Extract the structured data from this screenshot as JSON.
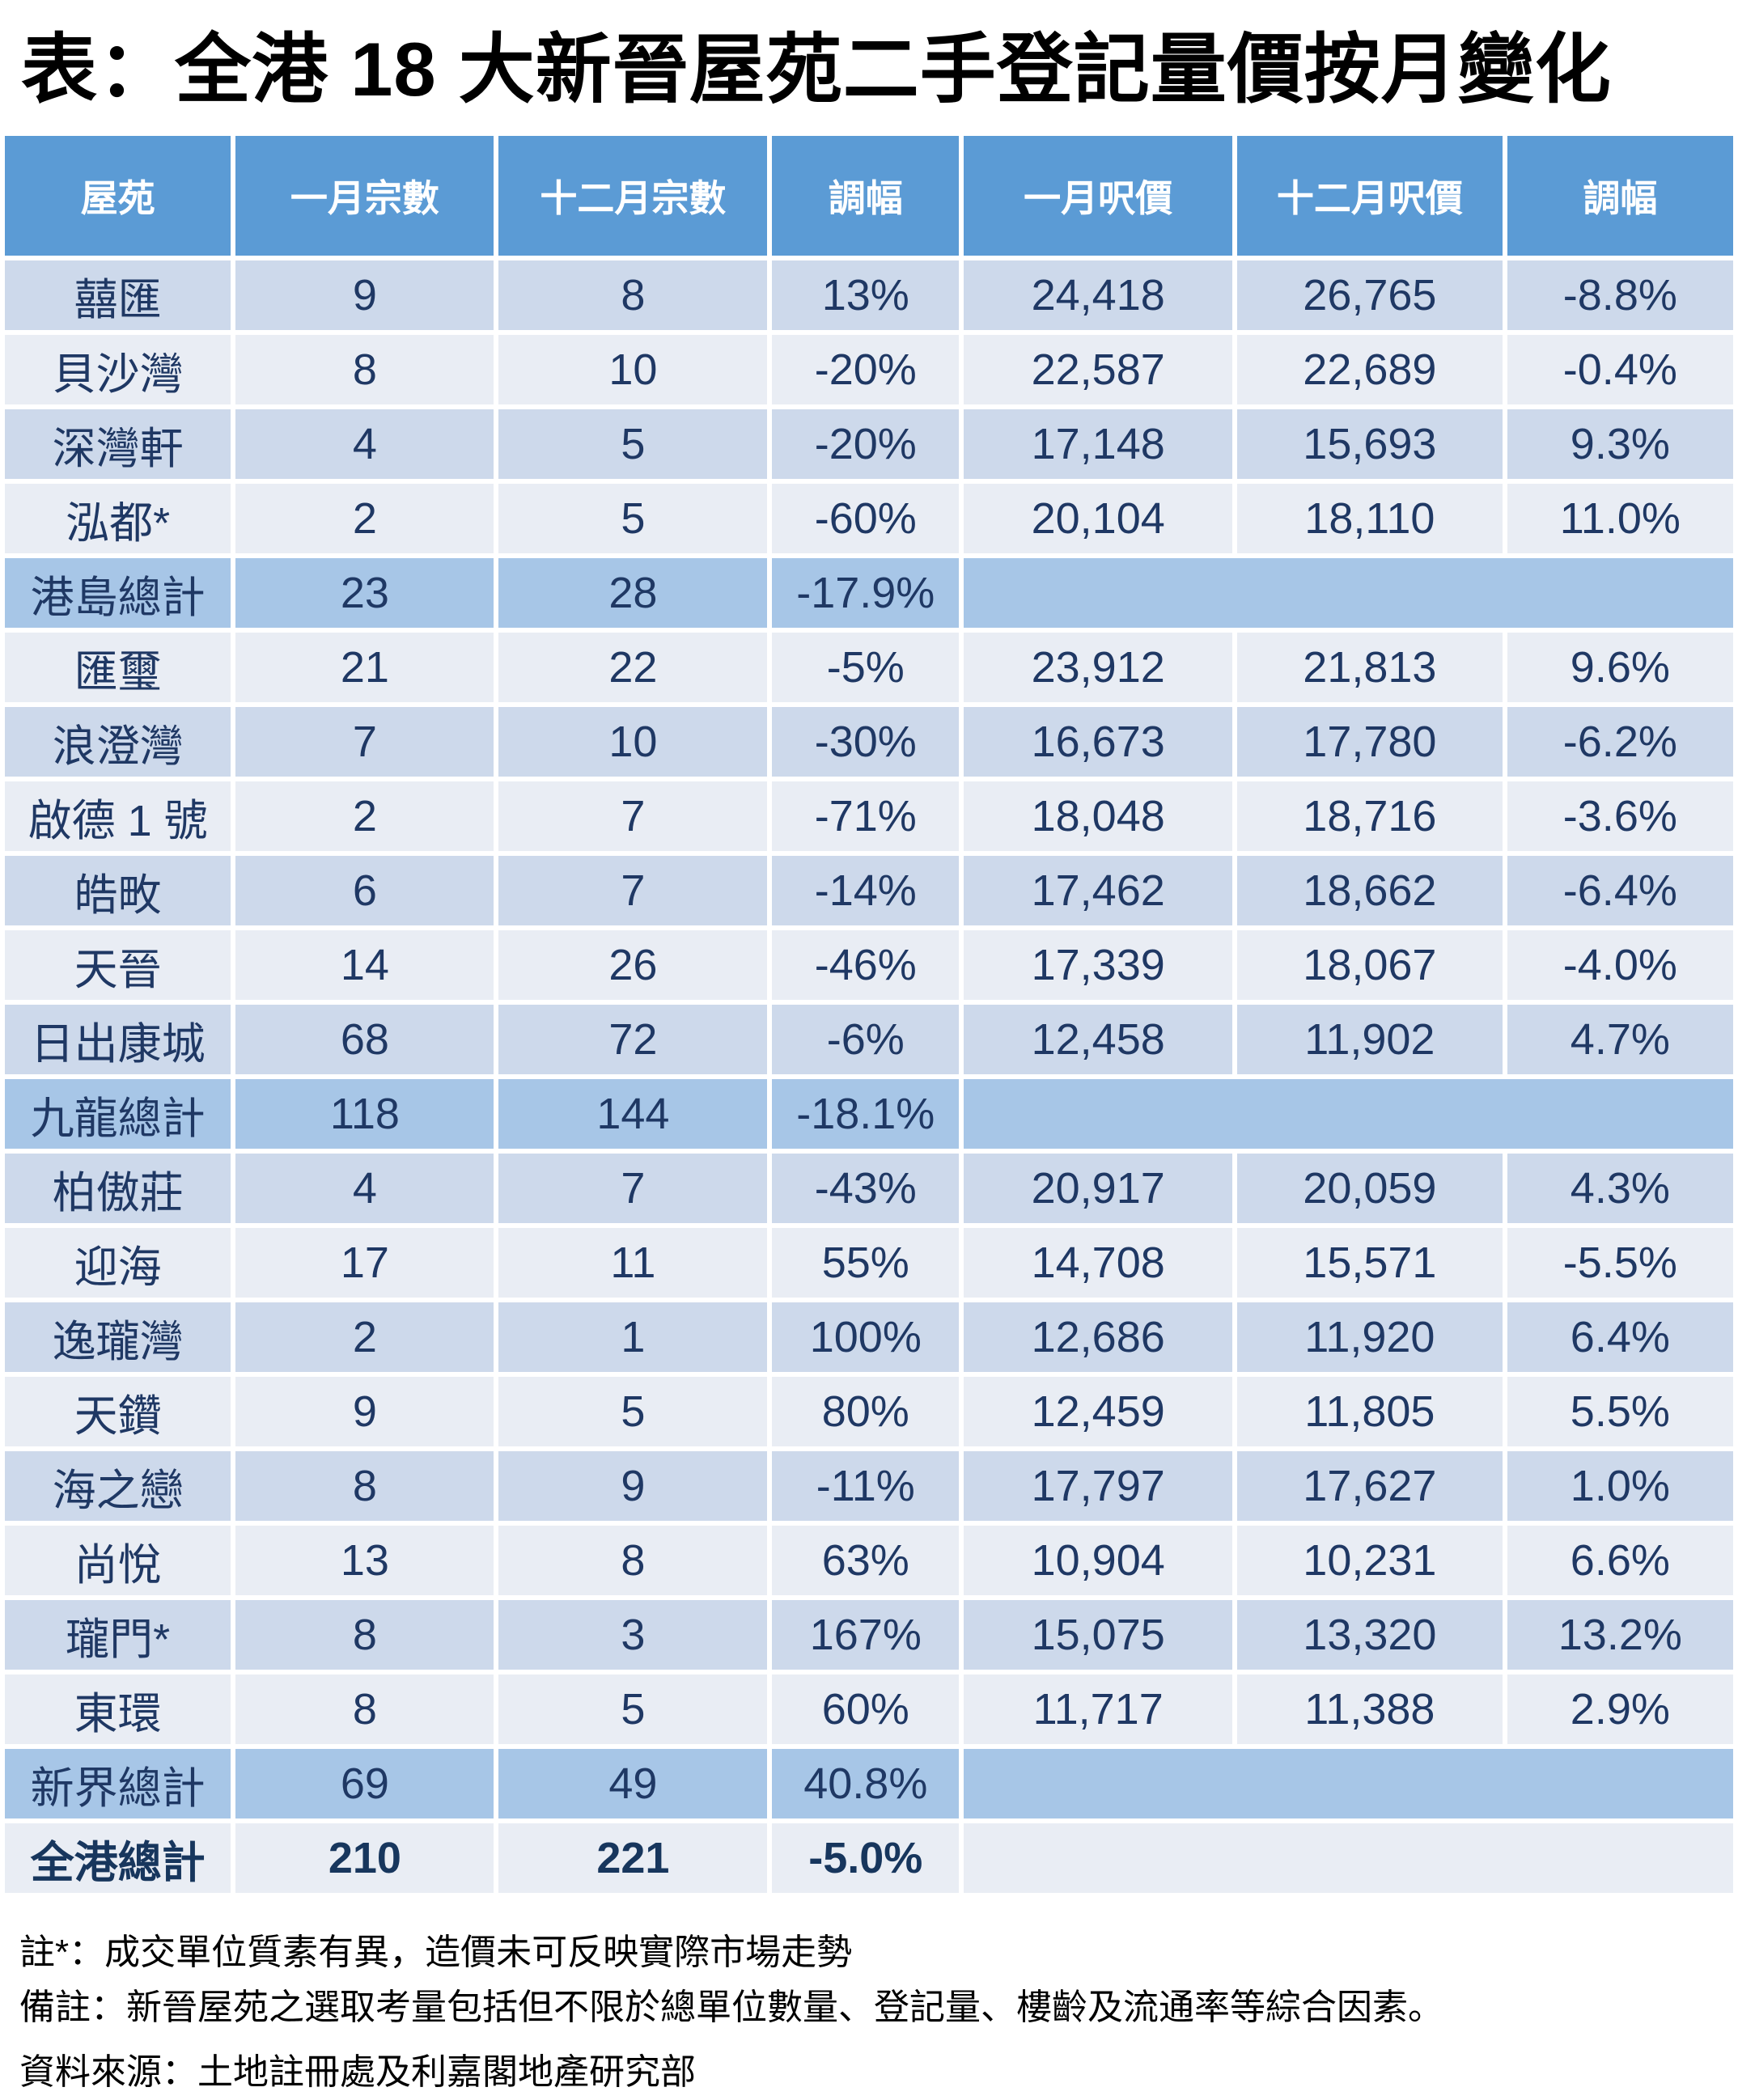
{
  "title": "表：全港 18 大新晉屋苑二手登記量價按月變化",
  "chart_data": {
    "type": "table",
    "title": "表：全港 18 大新晉屋苑二手登記量價按月變化",
    "columns": [
      "屋苑",
      "一月宗數",
      "十二月宗數",
      "調幅",
      "一月呎價",
      "十二月呎價",
      "調幅"
    ],
    "rows": [
      {
        "type": "estate",
        "cells": [
          "囍匯",
          "9",
          "8",
          "13%",
          "24,418",
          "26,765",
          "-8.8%"
        ]
      },
      {
        "type": "estate",
        "cells": [
          "貝沙灣",
          "8",
          "10",
          "-20%",
          "22,587",
          "22,689",
          "-0.4%"
        ]
      },
      {
        "type": "estate",
        "cells": [
          "深灣軒",
          "4",
          "5",
          "-20%",
          "17,148",
          "15,693",
          "9.3%"
        ]
      },
      {
        "type": "estate",
        "cells": [
          "泓都*",
          "2",
          "5",
          "-60%",
          "20,104",
          "18,110",
          "11.0%"
        ]
      },
      {
        "type": "subtotal",
        "cells": [
          "港島總計",
          "23",
          "28",
          "-17.9%",
          "",
          "",
          ""
        ]
      },
      {
        "type": "estate",
        "cells": [
          "匯璽",
          "21",
          "22",
          "-5%",
          "23,912",
          "21,813",
          "9.6%"
        ]
      },
      {
        "type": "estate",
        "cells": [
          "浪澄灣",
          "7",
          "10",
          "-30%",
          "16,673",
          "17,780",
          "-6.2%"
        ]
      },
      {
        "type": "estate",
        "cells": [
          "啟德 1 號",
          "2",
          "7",
          "-71%",
          "18,048",
          "18,716",
          "-3.6%"
        ]
      },
      {
        "type": "estate",
        "cells": [
          "皓畋",
          "6",
          "7",
          "-14%",
          "17,462",
          "18,662",
          "-6.4%"
        ]
      },
      {
        "type": "estate",
        "cells": [
          "天晉",
          "14",
          "26",
          "-46%",
          "17,339",
          "18,067",
          "-4.0%"
        ]
      },
      {
        "type": "estate",
        "cells": [
          "日出康城",
          "68",
          "72",
          "-6%",
          "12,458",
          "11,902",
          "4.7%"
        ]
      },
      {
        "type": "subtotal",
        "cells": [
          "九龍總計",
          "118",
          "144",
          "-18.1%",
          "",
          "",
          ""
        ]
      },
      {
        "type": "estate",
        "cells": [
          "柏傲莊",
          "4",
          "7",
          "-43%",
          "20,917",
          "20,059",
          "4.3%"
        ]
      },
      {
        "type": "estate",
        "cells": [
          "迎海",
          "17",
          "11",
          "55%",
          "14,708",
          "15,571",
          "-5.5%"
        ]
      },
      {
        "type": "estate",
        "cells": [
          "逸瓏灣",
          "2",
          "1",
          "100%",
          "12,686",
          "11,920",
          "6.4%"
        ]
      },
      {
        "type": "estate",
        "cells": [
          "天鑽",
          "9",
          "5",
          "80%",
          "12,459",
          "11,805",
          "5.5%"
        ]
      },
      {
        "type": "estate",
        "cells": [
          "海之戀",
          "8",
          "9",
          "-11%",
          "17,797",
          "17,627",
          "1.0%"
        ]
      },
      {
        "type": "estate",
        "cells": [
          "尚悅",
          "13",
          "8",
          "63%",
          "10,904",
          "10,231",
          "6.6%"
        ]
      },
      {
        "type": "estate",
        "cells": [
          "瓏門*",
          "8",
          "3",
          "167%",
          "15,075",
          "13,320",
          "13.2%"
        ]
      },
      {
        "type": "estate",
        "cells": [
          "東環",
          "8",
          "5",
          "60%",
          "11,717",
          "11,388",
          "2.9%"
        ]
      },
      {
        "type": "subtotal",
        "cells": [
          "新界總計",
          "69",
          "49",
          "40.8%",
          "",
          "",
          ""
        ]
      },
      {
        "type": "total",
        "cells": [
          "全港總計",
          "210",
          "221",
          "-5.0%",
          "",
          "",
          ""
        ]
      }
    ],
    "notes": [
      "註*：成交單位質素有異，造價未可反映實際市場走勢",
      "備註：新晉屋苑之選取考量包括但不限於總單位數量、登記量、樓齡及流通率等綜合因素。",
      "資料來源：土地註冊處及利嘉閣地產研究部"
    ]
  },
  "colors": {
    "header_bg": "#5b9bd5",
    "header_text": "#ffffff",
    "row_band_dark": "#cdd9eb",
    "row_band_light": "#e9edf4",
    "subtotal_bg": "#a7c6e7",
    "cell_text": "#1f3864",
    "title_text": "#000000"
  }
}
